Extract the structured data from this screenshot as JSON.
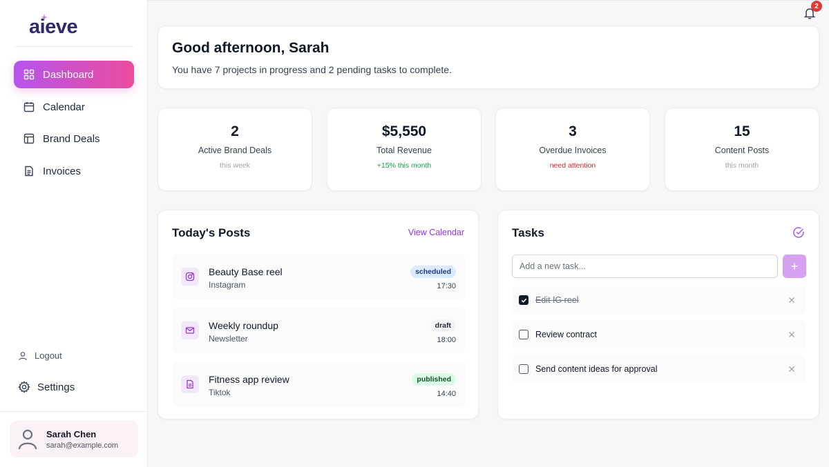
{
  "app": {
    "logo": "aieve"
  },
  "sidebar": {
    "nav": [
      {
        "label": "Dashboard",
        "icon": "grid-icon",
        "active": true
      },
      {
        "label": "Calendar",
        "icon": "calendar-icon"
      },
      {
        "label": "Brand Deals",
        "icon": "layout-icon"
      },
      {
        "label": "Invoices",
        "icon": "file-icon"
      }
    ],
    "logout_label": "Logout",
    "settings_label": "Settings",
    "user": {
      "name": "Sarah Chen",
      "email": "sarah@example.com"
    }
  },
  "notifications": {
    "count": "2"
  },
  "greeting": {
    "title": "Good afternoon, Sarah",
    "subtitle": "You have 7 projects in progress and 2 pending tasks to complete."
  },
  "stats": [
    {
      "value": "2",
      "label": "Active Brand Deals",
      "note": "this week"
    },
    {
      "value": "$5,550",
      "label": "Total Revenue",
      "note": "+15% this month"
    },
    {
      "value": "3",
      "label": "Overdue Invoices",
      "note": "need attention"
    },
    {
      "value": "15",
      "label": "Content Posts",
      "note": "this month"
    }
  ],
  "posts": {
    "title": "Today's Posts",
    "view_calendar": "View Calendar",
    "items": [
      {
        "title": "Beauty Base reel",
        "platform": "Instagram",
        "status": "scheduled",
        "time": "17:30",
        "icon": "instagram-icon"
      },
      {
        "title": "Weekly roundup",
        "platform": "Newsletter",
        "status": "draft",
        "time": "18:00",
        "icon": "mail-icon"
      },
      {
        "title": "Fitness app review",
        "platform": "Tiktok",
        "status": "published",
        "time": "14:40",
        "icon": "document-icon"
      }
    ]
  },
  "tasks": {
    "title": "Tasks",
    "input_placeholder": "Add a new task...",
    "add_label": "+",
    "items": [
      {
        "text": "Edit IG reel",
        "done": true
      },
      {
        "text": "Review contract",
        "done": false
      },
      {
        "text": "Send content ideas for approval",
        "done": false
      }
    ]
  },
  "colors": {
    "accent_gradient_start": "#b654ec",
    "accent_gradient_end": "#ec4c9d",
    "link": "#9333ea",
    "positive": "#16a34a",
    "negative": "#dc2626"
  }
}
